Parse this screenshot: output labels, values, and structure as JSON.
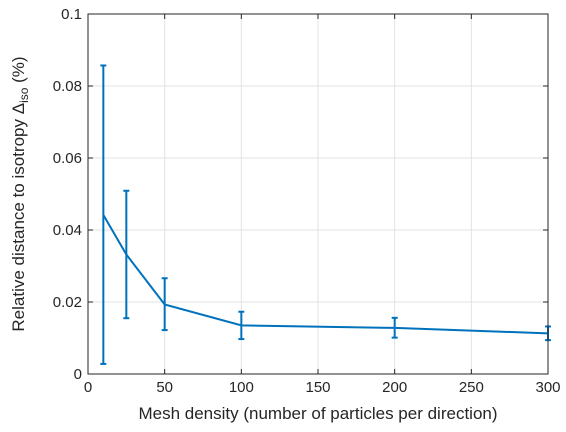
{
  "chart_data": {
    "type": "line",
    "xlabel": "Mesh density (number of particles per direction)",
    "ylabel_main": "Relative distance to isotropy  Δ",
    "ylabel_sub": "iso",
    "ylabel_suffix": " (%)",
    "xlim": [
      0,
      300
    ],
    "ylim": [
      0,
      0.1
    ],
    "x_ticks": [
      0,
      50,
      100,
      150,
      200,
      250,
      300
    ],
    "x_tick_labels": [
      "0",
      "50",
      "100",
      "150",
      "200",
      "250",
      "300"
    ],
    "y_ticks": [
      0,
      0.02,
      0.04,
      0.06,
      0.08,
      0.1
    ],
    "y_tick_labels": [
      "0",
      "0.02",
      "0.04",
      "0.06",
      "0.08",
      "0.1"
    ],
    "grid": true,
    "color": "#0072bd",
    "series": [
      {
        "x": [
          10,
          25,
          50,
          100,
          200,
          300
        ],
        "y": [
          0.0442,
          0.0332,
          0.0193,
          0.0135,
          0.0128,
          0.0113
        ],
        "err_low": [
          0.0028,
          0.0155,
          0.0122,
          0.0097,
          0.0101,
          0.0094
        ],
        "err_high": [
          0.0857,
          0.0509,
          0.0266,
          0.0173,
          0.0156,
          0.0132
        ]
      }
    ]
  }
}
